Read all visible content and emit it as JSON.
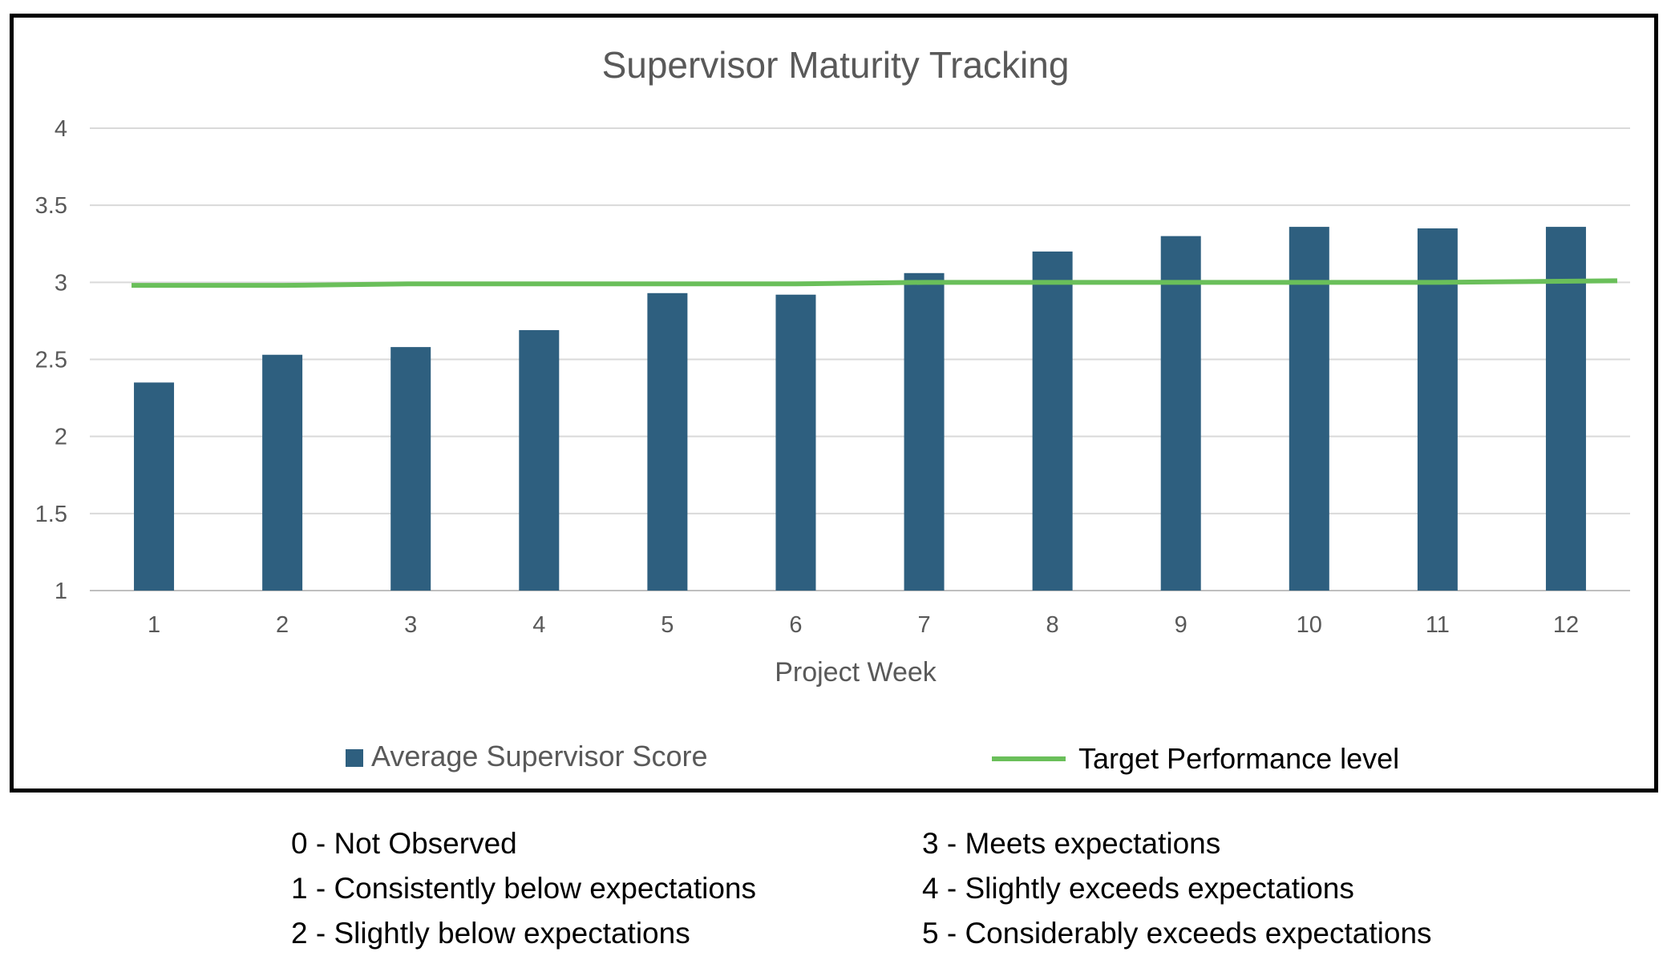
{
  "chart_data": {
    "type": "bar",
    "title": "Supervisor Maturity Tracking",
    "xlabel": "Project Week",
    "ylabel": "",
    "categories": [
      "1",
      "2",
      "3",
      "4",
      "5",
      "6",
      "7",
      "8",
      "9",
      "10",
      "11",
      "12"
    ],
    "series": [
      {
        "name": "Average Supervisor Score",
        "type": "bar",
        "color": "#2E5F7F",
        "values": [
          2.35,
          2.53,
          2.58,
          2.69,
          2.93,
          2.92,
          3.06,
          3.2,
          3.3,
          3.36,
          3.35,
          3.36
        ]
      },
      {
        "name": "Target Performance level",
        "type": "line",
        "color": "#6ABF5A",
        "values": [
          2.98,
          2.98,
          2.99,
          2.99,
          2.99,
          2.99,
          3.0,
          3.0,
          3.0,
          3.0,
          3.0,
          3.01
        ]
      }
    ],
    "ylim": [
      1,
      4
    ],
    "yticks": [
      "1",
      "1.5",
      "2",
      "2.5",
      "3",
      "3.5",
      "4"
    ],
    "grid": true,
    "legend_position": "bottom"
  },
  "scale_legend": {
    "left": [
      "0 - Not Observed",
      "1 - Consistently below expectations",
      "2 - Slightly below expectations"
    ],
    "right": [
      "3 - Meets expectations",
      "4 - Slightly exceeds expectations",
      "5 - Considerably exceeds expectations"
    ]
  }
}
